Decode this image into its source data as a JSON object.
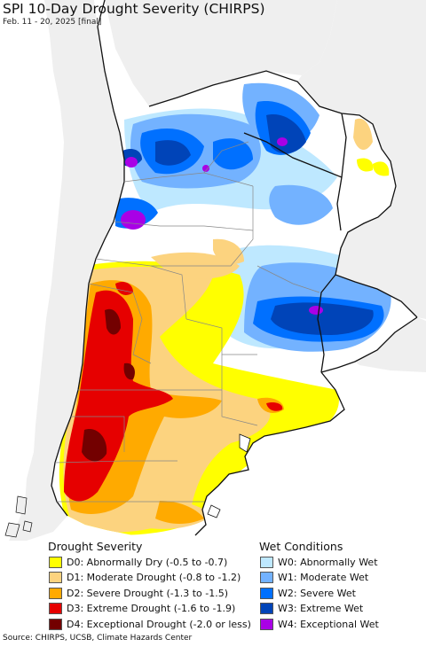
{
  "title": "SPI 10-Day Drought Severity (CHIRPS)",
  "subtitle": "Feb. 11 - 20, 2025 [final]",
  "legend": {
    "drought_title": "Drought Severity",
    "wet_title": "Wet Conditions",
    "drought": [
      {
        "label": "D0: Abnormally Dry (-0.5 to -0.7)",
        "color": "#ffff00"
      },
      {
        "label": "D1: Moderate Drought (-0.8 to -1.2)",
        "color": "#fcd37f"
      },
      {
        "label": "D2: Severe Drought (-1.3 to -1.5)",
        "color": "#ffaa00"
      },
      {
        "label": "D3: Extreme Drought (-1.6 to -1.9)",
        "color": "#e60000"
      },
      {
        "label": "D4: Exceptional Drought (-2.0 or less)",
        "color": "#730000"
      }
    ],
    "wet": [
      {
        "label": "W0: Abnormally Wet",
        "color": "#bee8ff"
      },
      {
        "label": "W1: Moderate Wet",
        "color": "#73b2ff"
      },
      {
        "label": "W2: Severe Wet",
        "color": "#0070ff"
      },
      {
        "label": "W3: Extreme Wet",
        "color": "#0044b8"
      },
      {
        "label": "W4: Exceptional Wet",
        "color": "#a900e6"
      }
    ]
  },
  "source": "Source: CHIRPS, UCSB, Climate Hazards Center",
  "map_colors": {
    "ocean": "#ffffff",
    "outside_land": "#efefef",
    "land": "#ffffff",
    "borders": "#111111",
    "provinces": "#888888"
  }
}
